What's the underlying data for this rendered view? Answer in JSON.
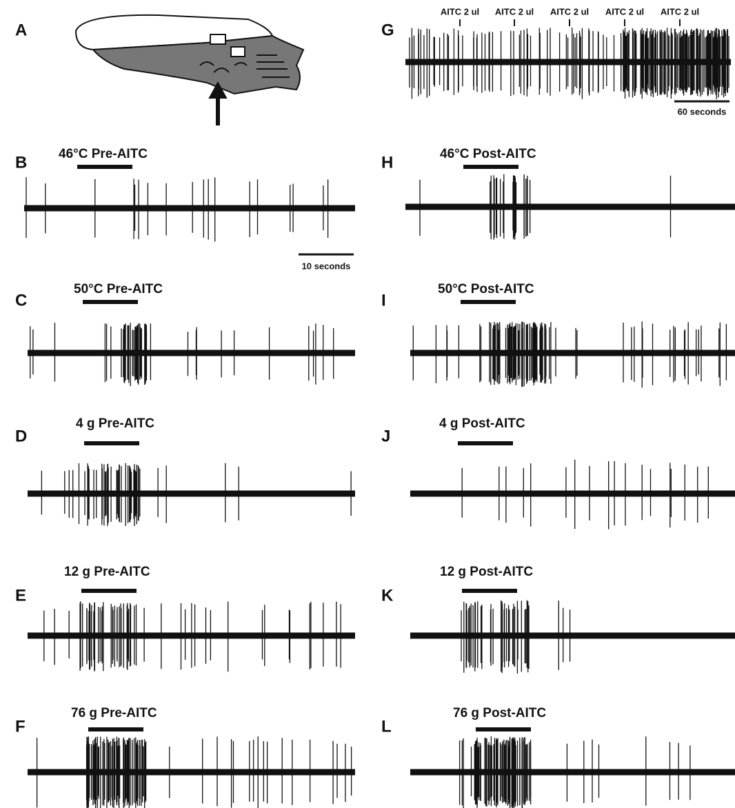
{
  "panels": [
    {
      "letter": "A"
    },
    {
      "letter": "B",
      "label": "46°C Pre-AITC",
      "scale_bar": "10 seconds"
    },
    {
      "letter": "C",
      "label": "50°C Pre-AITC"
    },
    {
      "letter": "D",
      "label": "4 g Pre-AITC"
    },
    {
      "letter": "E",
      "label": "12 g Pre-AITC"
    },
    {
      "letter": "F",
      "label": "76 g Pre-AITC"
    },
    {
      "letter": "G",
      "annotations": [
        "AITC 2 ul",
        "AITC 2 ul",
        "AITC 2 ul",
        "AITC 2 ul",
        "AITC 2 ul"
      ],
      "scale_bar": "60 seconds"
    },
    {
      "letter": "H",
      "label": "46°C Post-AITC"
    },
    {
      "letter": "I",
      "label": "50°C Post-AITC"
    },
    {
      "letter": "J",
      "label": "4 g Post-AITC"
    },
    {
      "letter": "K",
      "label": "12 g Post-AITC"
    },
    {
      "letter": "L",
      "label": "76 g Post-AITC"
    }
  ]
}
